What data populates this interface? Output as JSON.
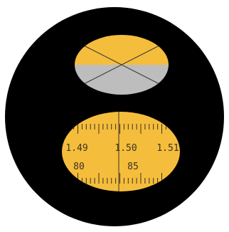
{
  "colors": {
    "background": "#ffffff",
    "eyepiece": "#000000",
    "illuminated": "#f5bd3c",
    "shadow": "#bdbdbd",
    "crosshair": "#3e3e3e",
    "scale_lines": "#3a3324"
  },
  "upper_field": {
    "description_icon": "crosshair-icon"
  },
  "scale": {
    "upper_labels": [
      "1.49",
      "1.50",
      "1.51"
    ],
    "lower_labels": [
      "80",
      "85"
    ]
  }
}
